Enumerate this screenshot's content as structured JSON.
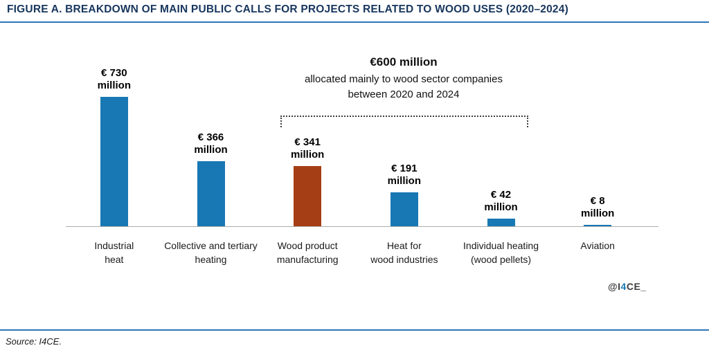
{
  "page": {
    "title": "FIGURE A. BREAKDOWN OF MAIN PUBLIC CALLS FOR PROJECTS RELATED TO WOOD USES (2020–2024)",
    "source": "Source: I4CE.",
    "watermark": {
      "prefix": "@I",
      "accent": "4",
      "suffix": "CE_"
    }
  },
  "annotation": {
    "line1": "€600 million",
    "line2": "allocated mainly to wood sector companies",
    "line3": "between 2020 and 2024"
  },
  "colors": {
    "bar_blue": "#1878b4",
    "bar_brown": "#a63e15",
    "title_navy": "#17365d",
    "rule_blue": "#2e75b6",
    "axis_gray": "#adadad",
    "accent_blue": "#1878b4"
  },
  "chart_data": {
    "type": "bar",
    "title": "Breakdown of main public calls for projects related to wood uses (2020–2024)",
    "categories": [
      "Industrial heat",
      "Collective and tertiary heating",
      "Wood product manufacturing",
      "Heat for wood industries",
      "Individual heating (wood pellets)",
      "Aviation"
    ],
    "category_lines": [
      [
        "Industrial",
        "heat"
      ],
      [
        "Collective and tertiary",
        "heating"
      ],
      [
        "Wood product",
        "manufacturing"
      ],
      [
        "Heat for",
        "wood industries"
      ],
      [
        "Individual heating",
        "(wood pellets)"
      ],
      [
        "Aviation"
      ]
    ],
    "values": [
      730,
      366,
      341,
      191,
      42,
      8
    ],
    "value_labels": [
      [
        "€ 730",
        "million"
      ],
      [
        "€ 366",
        "million"
      ],
      [
        "€ 341",
        "million"
      ],
      [
        "€ 191",
        "million"
      ],
      [
        "€ 42",
        "million"
      ],
      [
        "€ 8",
        "million"
      ]
    ],
    "bar_colors": [
      "blue",
      "blue",
      "brown",
      "blue",
      "blue",
      "blue"
    ],
    "unit": "€ million",
    "ylim": [
      0,
      760
    ],
    "grid": false,
    "legend": null,
    "annotation": {
      "text": "€600 million allocated mainly to wood sector companies between 2020 and 2024",
      "bracket_spans_categories": [
        "Wood product manufacturing",
        "Heat for wood industries",
        "Individual heating (wood pellets)"
      ]
    }
  }
}
